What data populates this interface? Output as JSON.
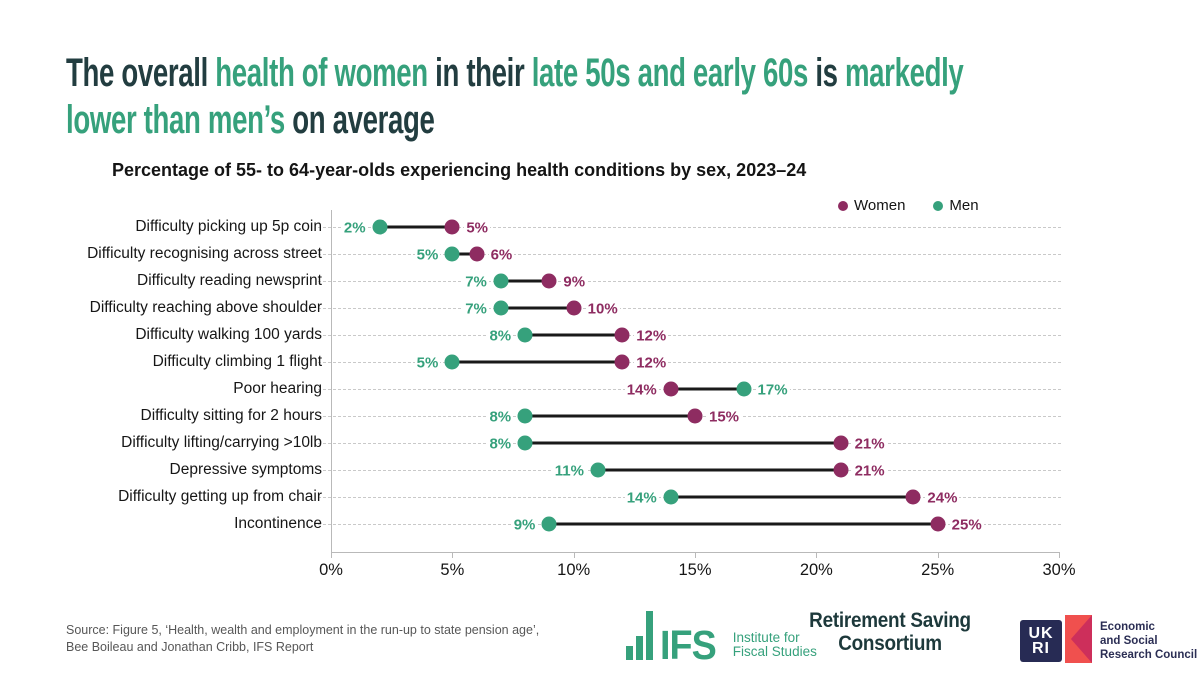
{
  "title": {
    "lines": [
      [
        {
          "t": "The overall ",
          "accent": false
        },
        {
          "t": "health of women",
          "accent": true
        },
        {
          "t": " in their ",
          "accent": false
        },
        {
          "t": "late 50s and early 60s",
          "accent": true
        },
        {
          "t": " is ",
          "accent": false
        },
        {
          "t": "markedly",
          "accent": true
        }
      ],
      [
        {
          "t": "lower than men’s",
          "accent": true
        },
        {
          "t": " on average",
          "accent": false
        }
      ]
    ]
  },
  "subtitle": "Percentage of 55- to 64-year-olds experiencing health conditions by sex, 2023–24",
  "colors": {
    "accent_green": "#36a17c",
    "women": "#8e2c61",
    "men": "#36a17c",
    "title_dark": "#223d40",
    "connector": "#1a1a1a"
  },
  "legend": [
    {
      "label": "Women",
      "color": "#8e2c61"
    },
    {
      "label": "Men",
      "color": "#36a17c"
    }
  ],
  "chart_data": {
    "type": "dumbbell",
    "title": "Percentage of 55- to 64-year-olds experiencing health conditions by sex, 2023–24",
    "categories": [
      "Difficulty picking up 5p coin",
      "Difficulty recognising across street",
      "Difficulty reading newsprint",
      "Difficulty reaching above shoulder",
      "Difficulty walking 100 yards",
      "Difficulty climbing 1 flight",
      "Poor hearing",
      "Difficulty sitting for 2 hours",
      "Difficulty lifting/carrying >10lb",
      "Depressive symptoms",
      "Difficulty getting up from chair",
      "Incontinence"
    ],
    "series": [
      {
        "name": "Women",
        "color": "#8e2c61",
        "values": [
          5,
          6,
          9,
          10,
          12,
          12,
          14,
          15,
          21,
          21,
          24,
          25
        ]
      },
      {
        "name": "Men",
        "color": "#36a17c",
        "values": [
          2,
          5,
          7,
          7,
          8,
          5,
          17,
          8,
          8,
          11,
          14,
          9
        ]
      }
    ],
    "value_suffix": "%",
    "xlim": [
      0,
      30
    ],
    "x_ticks": [
      "0%",
      "5%",
      "10%",
      "15%",
      "20%",
      "25%",
      "30%"
    ],
    "grid": "horizontal dashed",
    "legend_position": "top-right"
  },
  "footer": {
    "source_line1": "Source: Figure 5, ‘Health, wealth and employment in the run-up to state pension age’,",
    "source_line2": "Bee Boileau and Jonathan Cribb, IFS Report",
    "ifs_logo": {
      "abbr": "IFS",
      "name_line1": "Institute for",
      "name_line2": "Fiscal Studies"
    },
    "consortium": {
      "line1": "Retirement Saving",
      "line2": "Consortium"
    },
    "ukri": {
      "box_line1": "UK",
      "box_line2": "RI",
      "org_line1": "Economic",
      "org_line2": "and Social",
      "org_line3": "Research Council"
    }
  }
}
